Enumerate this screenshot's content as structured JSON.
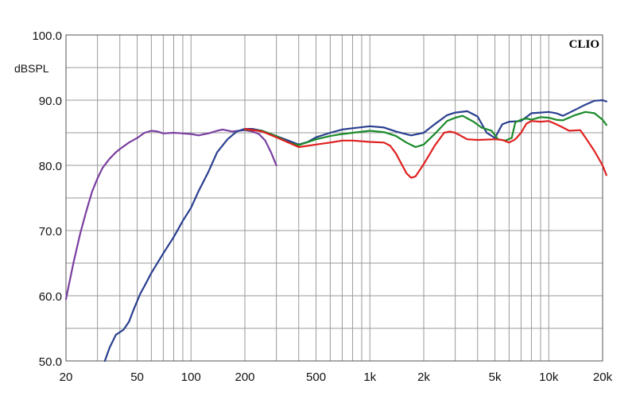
{
  "chart_data": {
    "type": "line",
    "title": "",
    "brand": "CLIO",
    "ylabel": "dBSPL",
    "xlabel": "",
    "x_scale": "log",
    "xlim": [
      20,
      20000
    ],
    "ylim": [
      50,
      100
    ],
    "grid": true,
    "y_ticks": [
      {
        "value": 50,
        "label": "50.0"
      },
      {
        "value": 60,
        "label": "60.0"
      },
      {
        "value": 70,
        "label": "70.0"
      },
      {
        "value": 80,
        "label": "80.0"
      },
      {
        "value": 90,
        "label": "90.0"
      },
      {
        "value": 100,
        "label": "100.0"
      }
    ],
    "x_ticks": [
      {
        "value": 20,
        "label": "20"
      },
      {
        "value": 50,
        "label": "50"
      },
      {
        "value": 100,
        "label": "100"
      },
      {
        "value": 200,
        "label": "200"
      },
      {
        "value": 500,
        "label": "500"
      },
      {
        "value": 1000,
        "label": "1k"
      },
      {
        "value": 2000,
        "label": "2k"
      },
      {
        "value": 5000,
        "label": "5k"
      },
      {
        "value": 10000,
        "label": "10k"
      },
      {
        "value": 20000,
        "label": "20k"
      }
    ],
    "series": [
      {
        "color": "#7a3fa0",
        "points": [
          [
            20,
            59.5
          ],
          [
            22,
            65
          ],
          [
            24,
            69.5
          ],
          [
            26,
            73
          ],
          [
            28,
            76
          ],
          [
            30,
            78
          ],
          [
            32,
            79.6
          ],
          [
            35,
            81
          ],
          [
            38,
            82
          ],
          [
            40,
            82.5
          ],
          [
            45,
            83.5
          ],
          [
            50,
            84.2
          ],
          [
            55,
            85
          ],
          [
            60,
            85.3
          ],
          [
            65,
            85.2
          ],
          [
            70,
            84.9
          ],
          [
            80,
            85
          ],
          [
            90,
            84.9
          ],
          [
            100,
            84.8
          ],
          [
            110,
            84.6
          ],
          [
            125,
            84.9
          ],
          [
            140,
            85.3
          ],
          [
            150,
            85.5
          ],
          [
            170,
            85.2
          ],
          [
            200,
            85.4
          ],
          [
            220,
            85.2
          ],
          [
            240,
            84.8
          ],
          [
            260,
            83.8
          ],
          [
            280,
            82
          ],
          [
            300,
            80
          ]
        ]
      },
      {
        "color": "#2a3f8f",
        "points": [
          [
            33,
            50
          ],
          [
            35,
            52
          ],
          [
            38,
            54
          ],
          [
            42,
            54.8
          ],
          [
            45,
            56
          ],
          [
            48,
            58
          ],
          [
            52,
            60.3
          ],
          [
            55,
            61.5
          ],
          [
            60,
            63.5
          ],
          [
            70,
            66.5
          ],
          [
            80,
            69
          ],
          [
            90,
            71.5
          ],
          [
            100,
            73.5
          ],
          [
            110,
            76
          ],
          [
            125,
            79
          ],
          [
            140,
            82
          ],
          [
            160,
            84
          ],
          [
            180,
            85.2
          ],
          [
            200,
            85.6
          ],
          [
            220,
            85.6
          ],
          [
            250,
            85.3
          ],
          [
            300,
            84.5
          ],
          [
            350,
            83.8
          ],
          [
            400,
            83.2
          ],
          [
            450,
            83.6
          ],
          [
            500,
            84.3
          ],
          [
            600,
            85
          ],
          [
            700,
            85.5
          ],
          [
            800,
            85.7
          ],
          [
            1000,
            86
          ],
          [
            1200,
            85.8
          ],
          [
            1400,
            85.2
          ],
          [
            1700,
            84.6
          ],
          [
            2000,
            85
          ],
          [
            2300,
            86.3
          ],
          [
            2700,
            87.7
          ],
          [
            3000,
            88.1
          ],
          [
            3500,
            88.3
          ],
          [
            4000,
            87.5
          ],
          [
            4500,
            85
          ],
          [
            5000,
            84.2
          ],
          [
            5500,
            86.3
          ],
          [
            6000,
            86.7
          ],
          [
            7000,
            86.8
          ],
          [
            8000,
            88
          ],
          [
            9000,
            88.1
          ],
          [
            10000,
            88.2
          ],
          [
            11000,
            88
          ],
          [
            12000,
            87.6
          ],
          [
            14000,
            88.5
          ],
          [
            16000,
            89.3
          ],
          [
            18000,
            89.9
          ],
          [
            20000,
            90
          ],
          [
            21000,
            89.8
          ]
        ]
      },
      {
        "color": "#1a8a2a",
        "points": [
          [
            200,
            85.5
          ],
          [
            250,
            85.3
          ],
          [
            300,
            84.5
          ],
          [
            350,
            83.5
          ],
          [
            400,
            83.1
          ],
          [
            500,
            84
          ],
          [
            600,
            84.5
          ],
          [
            700,
            84.8
          ],
          [
            800,
            85
          ],
          [
            1000,
            85.3
          ],
          [
            1200,
            85.1
          ],
          [
            1400,
            84.5
          ],
          [
            1600,
            83.5
          ],
          [
            1800,
            82.8
          ],
          [
            2000,
            83.2
          ],
          [
            2300,
            84.8
          ],
          [
            2700,
            86.8
          ],
          [
            3000,
            87.3
          ],
          [
            3300,
            87.6
          ],
          [
            3800,
            86.7
          ],
          [
            4200,
            85.8
          ],
          [
            4800,
            85.3
          ],
          [
            5200,
            84
          ],
          [
            5700,
            83.8
          ],
          [
            6200,
            84.2
          ],
          [
            6500,
            86.6
          ],
          [
            7000,
            87
          ],
          [
            7500,
            87.2
          ],
          [
            8000,
            87
          ],
          [
            9000,
            87.4
          ],
          [
            10000,
            87.3
          ],
          [
            11000,
            87
          ],
          [
            12000,
            86.9
          ],
          [
            14000,
            87.7
          ],
          [
            16000,
            88.2
          ],
          [
            18000,
            88
          ],
          [
            20000,
            87
          ],
          [
            21000,
            86.2
          ]
        ]
      },
      {
        "color": "#e02020",
        "points": [
          [
            200,
            85.6
          ],
          [
            250,
            85.2
          ],
          [
            300,
            84.3
          ],
          [
            350,
            83.5
          ],
          [
            400,
            82.8
          ],
          [
            450,
            83
          ],
          [
            500,
            83.2
          ],
          [
            600,
            83.5
          ],
          [
            700,
            83.8
          ],
          [
            800,
            83.8
          ],
          [
            1000,
            83.6
          ],
          [
            1200,
            83.5
          ],
          [
            1300,
            83
          ],
          [
            1400,
            81.8
          ],
          [
            1600,
            78.8
          ],
          [
            1700,
            78.1
          ],
          [
            1800,
            78.3
          ],
          [
            2000,
            80.2
          ],
          [
            2300,
            83
          ],
          [
            2600,
            85
          ],
          [
            2800,
            85.2
          ],
          [
            3000,
            85
          ],
          [
            3500,
            84
          ],
          [
            4000,
            83.9
          ],
          [
            5000,
            84
          ],
          [
            5500,
            83.9
          ],
          [
            6000,
            83.5
          ],
          [
            6500,
            84
          ],
          [
            7000,
            85
          ],
          [
            7500,
            86.4
          ],
          [
            8000,
            86.8
          ],
          [
            9000,
            86.7
          ],
          [
            10000,
            86.8
          ],
          [
            11000,
            86.3
          ],
          [
            12000,
            85.8
          ],
          [
            13000,
            85.3
          ],
          [
            15000,
            85.4
          ],
          [
            16000,
            84.3
          ],
          [
            18000,
            82.2
          ],
          [
            20000,
            80
          ],
          [
            21000,
            78.5
          ]
        ]
      }
    ]
  }
}
